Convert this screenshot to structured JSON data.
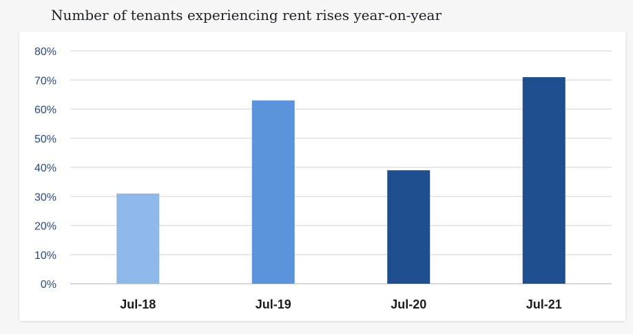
{
  "page": {
    "title": "Number of tenants experiencing rent rises year-on-year"
  },
  "chart_data": {
    "type": "bar",
    "title": "Number of tenants experiencing rent rises year-on-year",
    "xlabel": "",
    "ylabel": "",
    "categories": [
      "Jul-18",
      "Jul-19",
      "Jul-20",
      "Jul-21"
    ],
    "values": [
      31,
      63,
      39,
      71
    ],
    "unit": "%",
    "ylim": [
      0,
      80
    ],
    "yticks": [
      0,
      10,
      20,
      30,
      40,
      50,
      60,
      70,
      80
    ],
    "ytick_labels": [
      "0%",
      "10%",
      "20%",
      "30%",
      "40%",
      "50%",
      "60%",
      "70%",
      "80%"
    ],
    "bar_colors": [
      "#8fb8ea",
      "#5b93dc",
      "#1f4e8f",
      "#1f4e8f"
    ],
    "grid": true,
    "legend": "none"
  }
}
